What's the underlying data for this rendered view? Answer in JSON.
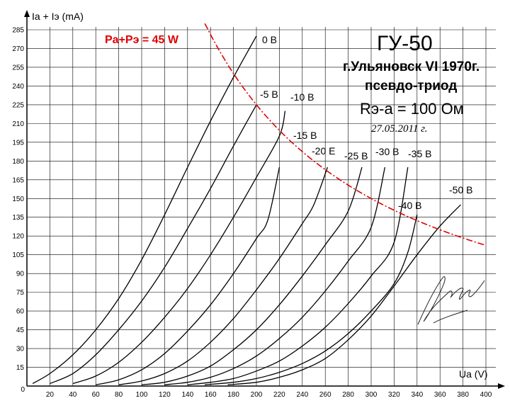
{
  "chart_data": {
    "type": "line",
    "ylabel": "Ia + Iэ (mA)",
    "xlabel": "Ua (V)",
    "xlim": [
      0,
      400
    ],
    "ylim": [
      0,
      285
    ],
    "x_ticks": [
      "0",
      "20",
      "40",
      "60",
      "80",
      "100",
      "120",
      "140",
      "160",
      "180",
      "200",
      "220",
      "240",
      "260",
      "280",
      "300",
      "320",
      "340",
      "360",
      "380",
      "400"
    ],
    "y_ticks": [
      "15",
      "30",
      "45",
      "60",
      "75",
      "90",
      "105",
      "120",
      "135",
      "150",
      "165",
      "180",
      "195",
      "210",
      "225",
      "240",
      "255",
      "270",
      "285"
    ],
    "grid": true,
    "title": "ГУ-50",
    "annotations": {
      "factory": "г.Ульяновск VI 1970г.",
      "mode": "псевдо-триод",
      "resistance": "Rэ-а = 100 Ом",
      "date": "27.05.2011 г.",
      "power_limit_label": "Pa+Pэ = 45 W"
    },
    "power_limit": {
      "watts": 45,
      "color": "#e00000",
      "x_start": 155,
      "x_end": 400
    },
    "series": [
      {
        "name": "0 В",
        "label_text": "0 В",
        "points": [
          [
            5,
            2
          ],
          [
            20,
            10
          ],
          [
            40,
            25
          ],
          [
            60,
            45
          ],
          [
            80,
            70
          ],
          [
            100,
            101
          ],
          [
            120,
            137
          ],
          [
            140,
            175
          ],
          [
            160,
            212
          ],
          [
            180,
            247
          ],
          [
            200,
            280
          ]
        ]
      },
      {
        "name": "-5 В",
        "label_text": "-5 В",
        "points": [
          [
            20,
            2
          ],
          [
            40,
            10
          ],
          [
            60,
            25
          ],
          [
            80,
            45
          ],
          [
            100,
            68
          ],
          [
            120,
            95
          ],
          [
            140,
            126
          ],
          [
            160,
            158
          ],
          [
            180,
            192
          ],
          [
            200,
            225
          ]
        ]
      },
      {
        "name": "-10 В",
        "label_text": "-10 В",
        "points": [
          [
            40,
            2
          ],
          [
            60,
            8
          ],
          [
            80,
            19
          ],
          [
            100,
            35
          ],
          [
            120,
            55
          ],
          [
            140,
            78
          ],
          [
            160,
            105
          ],
          [
            180,
            135
          ],
          [
            200,
            167
          ],
          [
            220,
            200
          ],
          [
            225,
            220
          ]
        ]
      },
      {
        "name": "-15 В",
        "label_text": "-15 В",
        "points": [
          [
            60,
            1
          ],
          [
            80,
            5
          ],
          [
            100,
            13
          ],
          [
            120,
            26
          ],
          [
            140,
            44
          ],
          [
            160,
            65
          ],
          [
            180,
            90
          ],
          [
            200,
            118
          ],
          [
            210,
            133
          ],
          [
            220,
            175
          ]
        ]
      },
      {
        "name": "-20 В",
        "label_text": "-20 Е",
        "points": [
          [
            80,
            1
          ],
          [
            100,
            4
          ],
          [
            120,
            10
          ],
          [
            140,
            20
          ],
          [
            160,
            35
          ],
          [
            180,
            54
          ],
          [
            200,
            77
          ],
          [
            220,
            102
          ],
          [
            240,
            130
          ],
          [
            250,
            145
          ],
          [
            262,
            175
          ]
        ]
      },
      {
        "name": "-25 В",
        "label_text": "-25 В",
        "points": [
          [
            100,
            1
          ],
          [
            120,
            3
          ],
          [
            140,
            8
          ],
          [
            160,
            16
          ],
          [
            180,
            29
          ],
          [
            200,
            45
          ],
          [
            220,
            65
          ],
          [
            240,
            88
          ],
          [
            260,
            113
          ],
          [
            280,
            140
          ],
          [
            292,
            175
          ]
        ]
      },
      {
        "name": "-30 В",
        "label_text": "-30 В",
        "points": [
          [
            120,
            1
          ],
          [
            140,
            3
          ],
          [
            160,
            7
          ],
          [
            180,
            14
          ],
          [
            200,
            24
          ],
          [
            220,
            38
          ],
          [
            240,
            55
          ],
          [
            260,
            76
          ],
          [
            280,
            100
          ],
          [
            300,
            127
          ],
          [
            312,
            175
          ]
        ]
      },
      {
        "name": "-35 В",
        "label_text": "-35 В",
        "points": [
          [
            140,
            1
          ],
          [
            160,
            3
          ],
          [
            180,
            6
          ],
          [
            200,
            12
          ],
          [
            220,
            20
          ],
          [
            240,
            32
          ],
          [
            260,
            47
          ],
          [
            280,
            66
          ],
          [
            300,
            88
          ],
          [
            320,
            115
          ],
          [
            332,
            175
          ]
        ]
      },
      {
        "name": "-40 В",
        "label_text": "-40 В",
        "points": [
          [
            155,
            1
          ],
          [
            180,
            3
          ],
          [
            200,
            6
          ],
          [
            220,
            11
          ],
          [
            240,
            18
          ],
          [
            260,
            28
          ],
          [
            280,
            42
          ],
          [
            300,
            60
          ],
          [
            320,
            82
          ],
          [
            332,
            107
          ],
          [
            340,
            137
          ]
        ]
      },
      {
        "name": "-50 В",
        "label_text": "-50 В",
        "points": [
          [
            175,
            1
          ],
          [
            200,
            3
          ],
          [
            220,
            7
          ],
          [
            240,
            13
          ],
          [
            260,
            22
          ],
          [
            280,
            37
          ],
          [
            300,
            56
          ],
          [
            320,
            80
          ],
          [
            340,
            105
          ],
          [
            360,
            128
          ],
          [
            378,
            145
          ]
        ]
      }
    ]
  }
}
